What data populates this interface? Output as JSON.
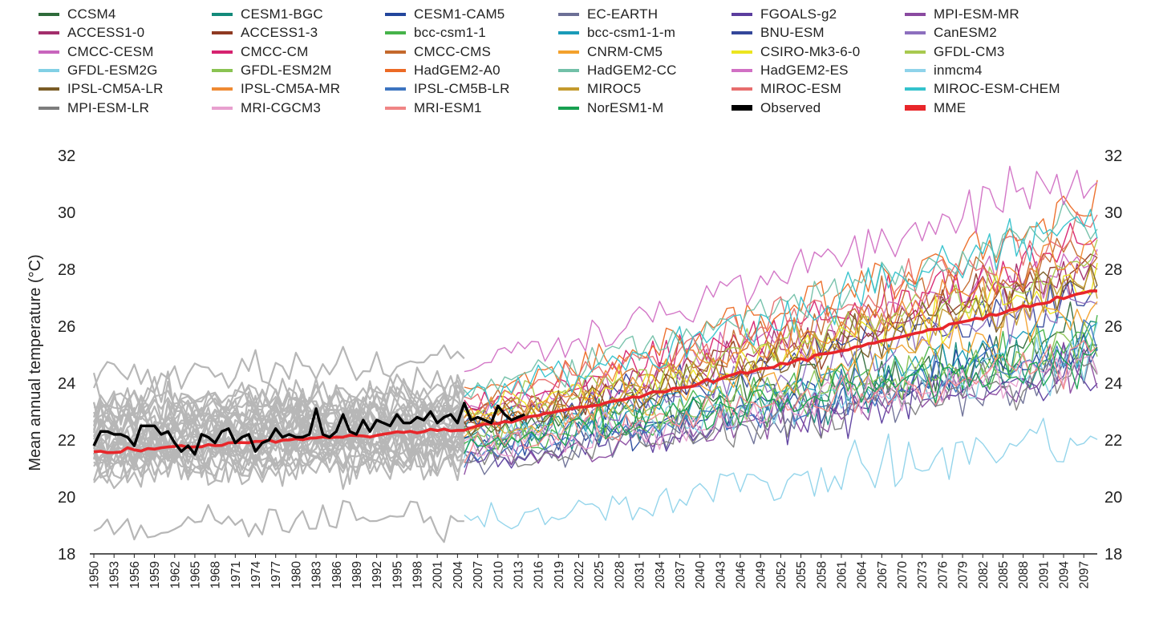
{
  "chart_data": {
    "type": "line",
    "ylabel": "Mean annual temperature (°C)",
    "ylim": [
      18,
      32
    ],
    "yticks": [
      18,
      20,
      22,
      24,
      26,
      28,
      30,
      32
    ],
    "xlim": [
      1950,
      2099
    ],
    "xticks": [
      "1950",
      "1953",
      "1956",
      "1959",
      "1962",
      "1965",
      "1968",
      "1971",
      "1974",
      "1977",
      "1980",
      "1983",
      "1986",
      "1989",
      "1992",
      "1995",
      "1998",
      "2001",
      "2004",
      "2007",
      "2010",
      "2013",
      "2016",
      "2019",
      "2022",
      "2025",
      "2028",
      "2031",
      "2034",
      "2037",
      "2040",
      "2043",
      "2046",
      "2049",
      "2052",
      "2055",
      "2058",
      "2061",
      "2064",
      "2067",
      "2070",
      "2073",
      "2076",
      "2079",
      "2082",
      "2085",
      "2088",
      "2091",
      "2094",
      "2097"
    ],
    "historical_end_year": 2005,
    "historical_color": "#b7b7b7",
    "legend_columns": 6,
    "legend": [
      {
        "name": "CCSM4",
        "color": "#2e6b3a",
        "base": 22.3,
        "slope": 3.4
      },
      {
        "name": "CESM1-BGC",
        "color": "#138a7a",
        "base": 22.0,
        "slope": 3.2
      },
      {
        "name": "CESM1-CAM5",
        "color": "#23469c",
        "base": 21.7,
        "slope": 3.6
      },
      {
        "name": "EC-EARTH",
        "color": "#6c6f96",
        "base": 21.3,
        "slope": 3.3
      },
      {
        "name": "FGOALS-g2",
        "color": "#5b3d9e",
        "base": 21.4,
        "slope": 3.0
      },
      {
        "name": "MPI-ESM-MR",
        "color": "#8a4aa0",
        "base": 21.2,
        "slope": 3.2
      },
      {
        "name": "ACCESS1-0",
        "color": "#a32e6c",
        "base": 22.8,
        "slope": 5.3
      },
      {
        "name": "ACCESS1-3",
        "color": "#8f3a22",
        "base": 22.6,
        "slope": 5.5
      },
      {
        "name": "bcc-csm1-1",
        "color": "#46b34a",
        "base": 21.9,
        "slope": 3.6
      },
      {
        "name": "bcc-csm1-1-m",
        "color": "#1a9bb8",
        "base": 22.4,
        "slope": 3.5
      },
      {
        "name": "BNU-ESM",
        "color": "#34479a",
        "base": 22.5,
        "slope": 4.8
      },
      {
        "name": "CanESM2",
        "color": "#8d6fbe",
        "base": 22.1,
        "slope": 5.0
      },
      {
        "name": "CMCC-CESM",
        "color": "#c865bd",
        "base": 23.0,
        "slope": 5.4
      },
      {
        "name": "CMCC-CM",
        "color": "#d6226f",
        "base": 23.3,
        "slope": 5.7
      },
      {
        "name": "CMCC-CMS",
        "color": "#c4692c",
        "base": 23.1,
        "slope": 5.8
      },
      {
        "name": "CNRM-CM5",
        "color": "#f3a12c",
        "base": 22.3,
        "slope": 4.4
      },
      {
        "name": "CSIRO-Mk3-6-0",
        "color": "#ece51f",
        "base": 22.9,
        "slope": 4.6
      },
      {
        "name": "GFDL-CM3",
        "color": "#a8c94f",
        "base": 23.0,
        "slope": 5.2
      },
      {
        "name": "GFDL-ESM2G",
        "color": "#82d0e5",
        "base": 22.0,
        "slope": 2.9
      },
      {
        "name": "GFDL-ESM2M",
        "color": "#8ac352",
        "base": 22.2,
        "slope": 3.1
      },
      {
        "name": "HadGEM2-A0",
        "color": "#ec6a25",
        "base": 23.6,
        "slope": 6.6
      },
      {
        "name": "HadGEM2-CC",
        "color": "#72c0a8",
        "base": 23.8,
        "slope": 6.2
      },
      {
        "name": "HadGEM2-ES",
        "color": "#d170c4",
        "base": 24.7,
        "slope": 6.8
      },
      {
        "name": "inmcm4",
        "color": "#8fd3ea",
        "base": 19.2,
        "slope": 3.0
      },
      {
        "name": "IPSL-CM5A-LR",
        "color": "#7a5c25",
        "base": 22.5,
        "slope": 5.3
      },
      {
        "name": "IPSL-CM5A-MR",
        "color": "#ef8a33",
        "base": 22.9,
        "slope": 5.6
      },
      {
        "name": "IPSL-CM5B-LR",
        "color": "#3c74c0",
        "base": 21.5,
        "slope": 3.8
      },
      {
        "name": "MIROC5",
        "color": "#c49a2d",
        "base": 22.7,
        "slope": 4.8
      },
      {
        "name": "MIROC-ESM",
        "color": "#e76d6d",
        "base": 23.4,
        "slope": 6.0
      },
      {
        "name": "MIROC-ESM-CHEM",
        "color": "#34c2cc",
        "base": 23.5,
        "slope": 6.3
      },
      {
        "name": "MPI-ESM-LR",
        "color": "#7d7d7d",
        "base": 21.3,
        "slope": 3.1
      },
      {
        "name": "MRI-CGCM3",
        "color": "#e8a0cf",
        "base": 21.8,
        "slope": 2.9
      },
      {
        "name": "MRI-ESM1",
        "color": "#f08585",
        "base": 21.9,
        "slope": 3.0
      },
      {
        "name": "NorESM1-M",
        "color": "#17a050",
        "base": 22.0,
        "slope": 3.1
      },
      {
        "name": "Observed",
        "color": "#000000",
        "kind": "observed"
      },
      {
        "name": "MME",
        "color": "#e8262a",
        "kind": "mme"
      }
    ],
    "observed": {
      "x": [
        1950,
        1951,
        1952,
        1953,
        1954,
        1955,
        1956,
        1957,
        1958,
        1959,
        1960,
        1961,
        1962,
        1963,
        1964,
        1965,
        1966,
        1967,
        1968,
        1969,
        1970,
        1971,
        1972,
        1973,
        1974,
        1975,
        1976,
        1977,
        1978,
        1979,
        1980,
        1981,
        1982,
        1983,
        1984,
        1985,
        1986,
        1987,
        1988,
        1989,
        1990,
        1991,
        1992,
        1993,
        1994,
        1995,
        1996,
        1997,
        1998,
        1999,
        2000,
        2001,
        2002,
        2003,
        2004,
        2005,
        2006,
        2007,
        2008,
        2009,
        2010,
        2011,
        2012,
        2013,
        2014
      ],
      "y": [
        21.8,
        22.3,
        22.3,
        22.2,
        22.2,
        22.1,
        21.8,
        22.5,
        22.5,
        22.5,
        22.2,
        22.3,
        21.9,
        21.6,
        21.8,
        21.5,
        22.2,
        22.1,
        21.9,
        22.3,
        22.4,
        21.9,
        22.1,
        22.2,
        21.6,
        21.9,
        22.0,
        22.4,
        22.1,
        22.2,
        22.1,
        22.1,
        22.2,
        23.1,
        22.2,
        22.1,
        22.3,
        22.9,
        22.3,
        22.2,
        22.7,
        22.3,
        22.7,
        22.6,
        22.5,
        22.9,
        22.6,
        22.6,
        22.8,
        22.7,
        23.0,
        22.6,
        22.8,
        22.9,
        22.6,
        23.3,
        22.7,
        22.8,
        22.7,
        22.6,
        23.2,
        22.9,
        22.7,
        22.8,
        22.9
      ]
    },
    "mme": {
      "start": 21.55,
      "mid_year": 2005,
      "mid": 22.4,
      "end": 27.3
    }
  }
}
